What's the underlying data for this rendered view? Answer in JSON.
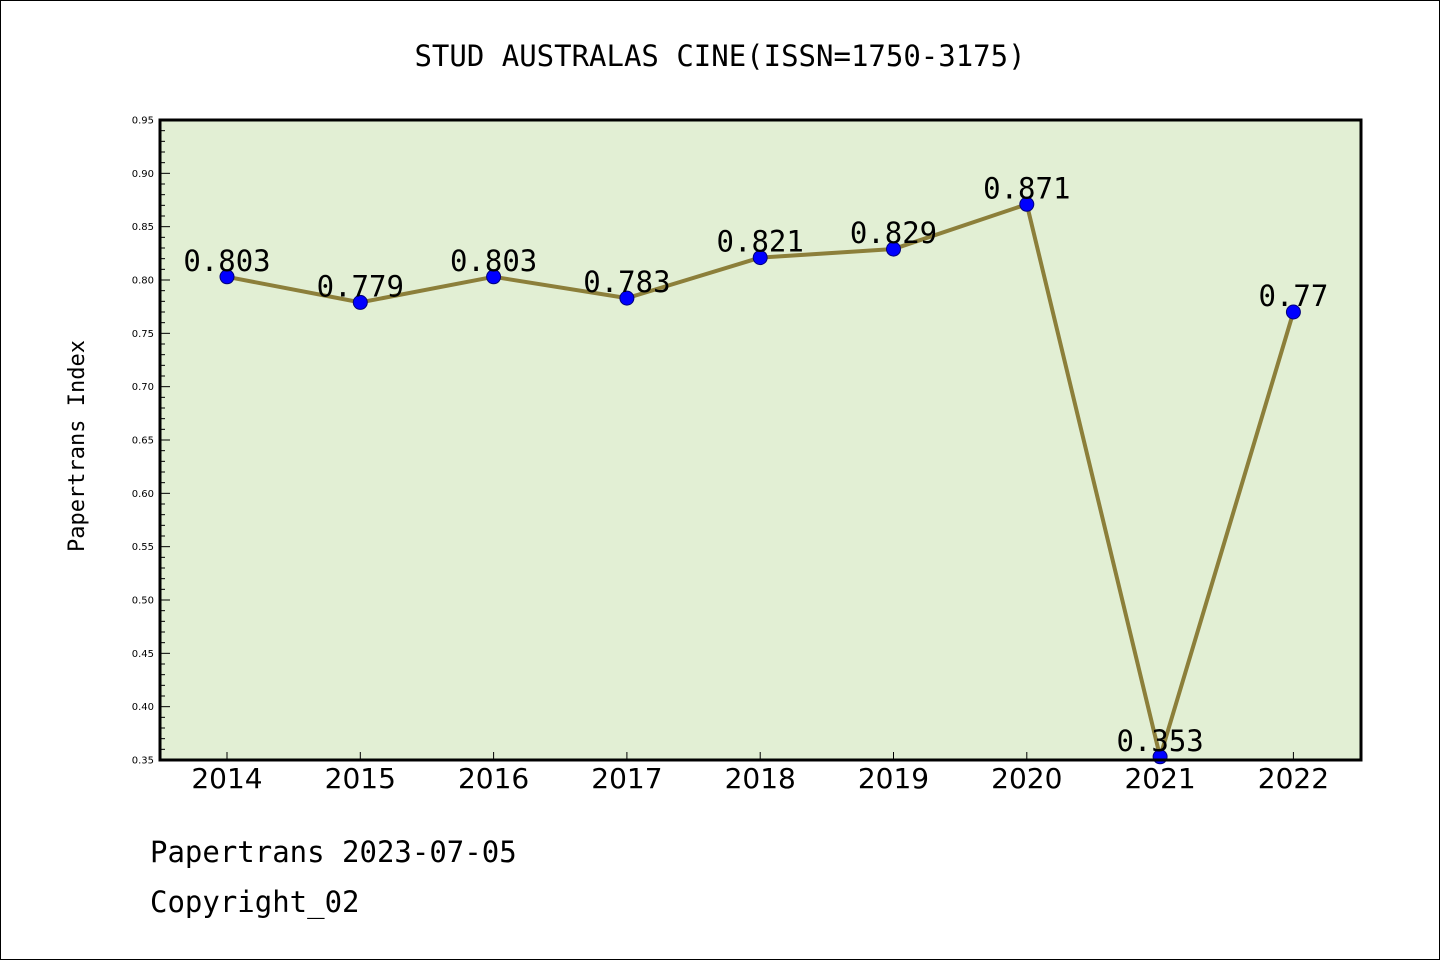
{
  "chart_data": {
    "type": "line",
    "title": "STUD AUSTRALAS CINE(ISSN=1750-3175)",
    "xlabel": "",
    "ylabel": "Papertrans Index",
    "categories": [
      "2014",
      "2015",
      "2016",
      "2017",
      "2018",
      "2019",
      "2020",
      "2021",
      "2022"
    ],
    "values": [
      0.803,
      0.779,
      0.803,
      0.783,
      0.821,
      0.829,
      0.871,
      0.353,
      0.77
    ],
    "data_labels": [
      "0.803",
      "0.779",
      "0.803",
      "0.783",
      "0.821",
      "0.829",
      "0.871",
      "0.353",
      "0.77"
    ],
    "ylim": [
      0.35,
      0.95
    ],
    "yticks": [
      "0.35",
      "0.40",
      "0.45",
      "0.50",
      "0.55",
      "0.60",
      "0.65",
      "0.70",
      "0.75",
      "0.80",
      "0.85",
      "0.90",
      "0.95"
    ],
    "grid": false,
    "legend": "none",
    "colors": {
      "plot_background": "#e2efd4",
      "line": "#8c7f3a",
      "marker": "#0000ff"
    }
  },
  "footer": {
    "line1": "Papertrans 2023-07-05",
    "line2": "Copyright_02"
  }
}
